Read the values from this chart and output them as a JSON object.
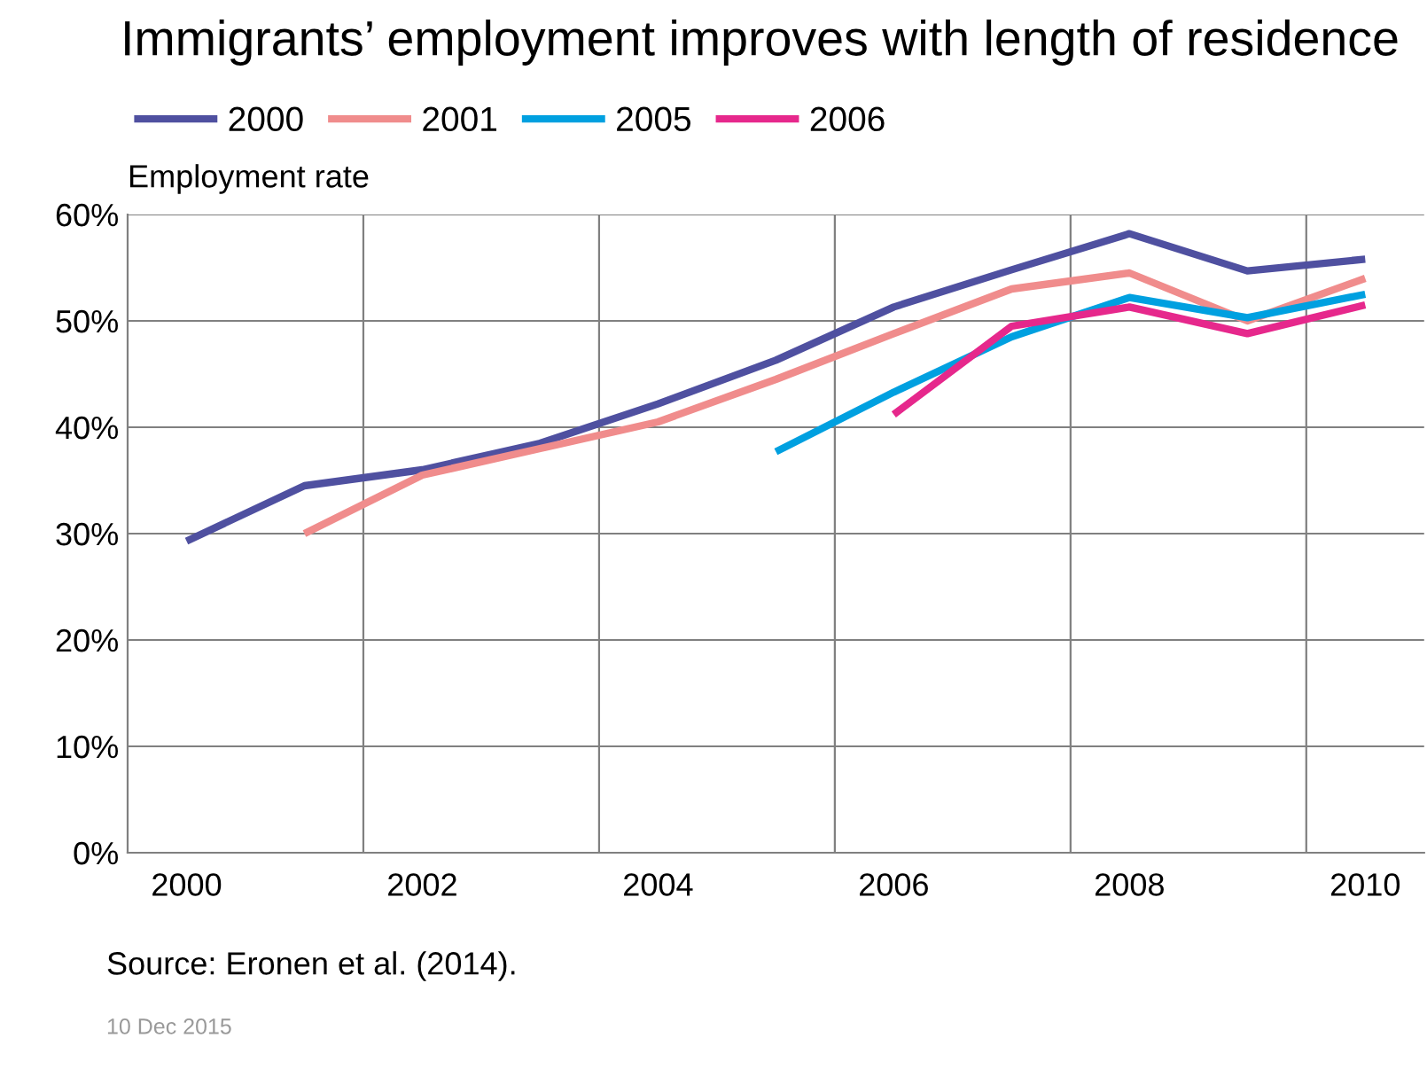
{
  "chart_data": {
    "type": "line",
    "title": "Immigrants’ employment improves with length of residence",
    "ylabel": "Employment rate",
    "x": [
      2000,
      2001,
      2002,
      2003,
      2004,
      2005,
      2006,
      2007,
      2008,
      2009,
      2010
    ],
    "series": [
      {
        "name": "2000",
        "color": "#4f50a0",
        "values": [
          29.3,
          34.5,
          36,
          38.5,
          42.2,
          46.3,
          51.3,
          54.8,
          58.2,
          54.7,
          55.8
        ]
      },
      {
        "name": "2001",
        "color": "#f08c8c",
        "values": [
          null,
          30,
          35.5,
          38,
          40.5,
          44.5,
          48.8,
          53,
          54.5,
          50,
          54
        ]
      },
      {
        "name": "2005",
        "color": "#00a0e0",
        "values": [
          null,
          null,
          null,
          null,
          null,
          37.7,
          43.3,
          48.5,
          52.2,
          50.3,
          52.5
        ]
      },
      {
        "name": "2006",
        "color": "#e6288c",
        "values": [
          null,
          null,
          null,
          null,
          null,
          null,
          41.2,
          49.5,
          51.3,
          48.8,
          51.5
        ]
      }
    ],
    "xlim": [
      1999.5,
      2010.5
    ],
    "xticks": [
      2000,
      {
        "value": 2001.5,
        "label": null
      },
      2002,
      {
        "value": 2003.5,
        "label": null
      },
      2004,
      {
        "value": 2005.5,
        "label": null
      },
      2006,
      {
        "value": 2007.5,
        "label": null
      },
      2008,
      {
        "value": 2009.5,
        "label": null
      },
      2010
    ],
    "ylim": [
      0,
      60
    ],
    "yticks": [
      {
        "value": 0,
        "label": "0%"
      },
      {
        "value": 10,
        "label": "10%"
      },
      {
        "value": 20,
        "label": "20%"
      },
      {
        "value": 30,
        "label": "30%"
      },
      {
        "value": 40,
        "label": "40%"
      },
      {
        "value": 50,
        "label": "50%"
      },
      {
        "value": 60,
        "label": "60%"
      }
    ],
    "grid": true,
    "legend": "top left",
    "marker": "none",
    "line_style": "solid",
    "annotations": [
      "Source: Eronen et al. (2014).",
      "10 Dec 2015"
    ]
  }
}
